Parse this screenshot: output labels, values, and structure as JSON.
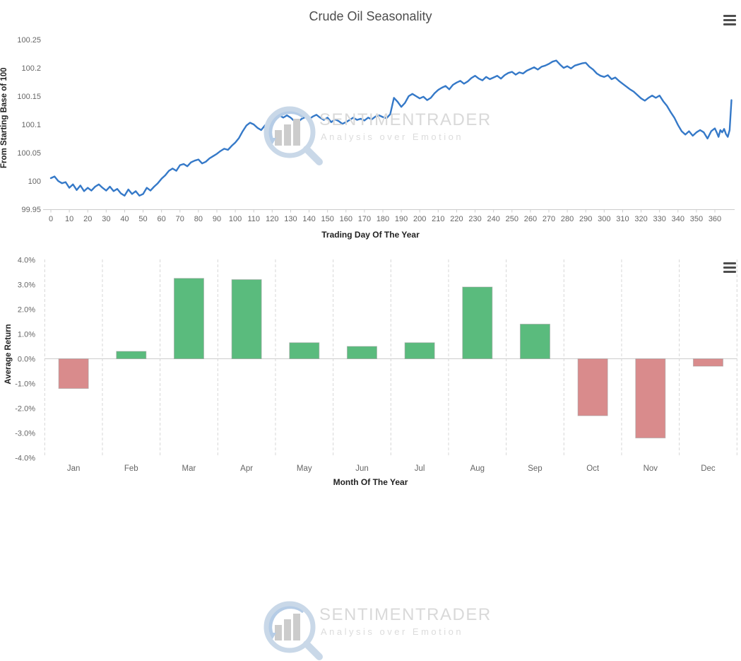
{
  "header": {
    "title": "Crude Oil Seasonality"
  },
  "watermark": {
    "title": "SENTIMENTRADER",
    "subtitle": "Analysis over Emotion"
  },
  "icons": {
    "menu": "hamburger-menu-icon"
  },
  "colors": {
    "line": "#3579c8",
    "positive_bar": "#5abb7d",
    "negative_bar": "#d98b8c",
    "bar_border": "#9e9e9e",
    "axis_line": "#cccccc",
    "grid_dash": "#d6d6d6",
    "tick_text": "#666666",
    "title_text": "#4d4d4d"
  },
  "chart_data": [
    {
      "type": "line",
      "title": "Crude Oil Seasonality",
      "xlabel": "Trading Day Of The Year",
      "ylabel": "From Starting Base of 100",
      "xlim": [
        0,
        370
      ],
      "ylim": [
        99.95,
        100.2625
      ],
      "grid": false,
      "legend": "none",
      "x_ticks": [
        0,
        10,
        20,
        30,
        40,
        50,
        60,
        70,
        80,
        90,
        100,
        110,
        120,
        130,
        140,
        150,
        160,
        170,
        180,
        190,
        200,
        210,
        220,
        230,
        240,
        250,
        260,
        270,
        280,
        290,
        300,
        310,
        320,
        330,
        340,
        350,
        360
      ],
      "y_ticks": [
        "99.95",
        "100",
        "100.05",
        "100.1",
        "100.15",
        "100.2",
        "100.25"
      ],
      "series": [
        {
          "name": "Crude Oil Seasonality",
          "color": "#3579c8",
          "points": [
            [
              0,
              100.005
            ],
            [
              2,
              100.008
            ],
            [
              4,
              100.0
            ],
            [
              6,
              99.996
            ],
            [
              8,
              99.998
            ],
            [
              10,
              99.988
            ],
            [
              12,
              99.994
            ],
            [
              14,
              99.984
            ],
            [
              16,
              99.992
            ],
            [
              18,
              99.982
            ],
            [
              20,
              99.988
            ],
            [
              22,
              99.983
            ],
            [
              24,
              99.99
            ],
            [
              26,
              99.994
            ],
            [
              28,
              99.988
            ],
            [
              30,
              99.983
            ],
            [
              32,
              99.99
            ],
            [
              34,
              99.982
            ],
            [
              36,
              99.986
            ],
            [
              38,
              99.978
            ],
            [
              40,
              99.974
            ],
            [
              42,
              99.985
            ],
            [
              44,
              99.977
            ],
            [
              46,
              99.982
            ],
            [
              48,
              99.974
            ],
            [
              50,
              99.977
            ],
            [
              52,
              99.988
            ],
            [
              54,
              99.983
            ],
            [
              56,
              99.99
            ],
            [
              58,
              99.996
            ],
            [
              60,
              100.004
            ],
            [
              62,
              100.01
            ],
            [
              64,
              100.018
            ],
            [
              66,
              100.022
            ],
            [
              68,
              100.018
            ],
            [
              70,
              100.028
            ],
            [
              72,
              100.03
            ],
            [
              74,
              100.026
            ],
            [
              76,
              100.033
            ],
            [
              78,
              100.036
            ],
            [
              80,
              100.038
            ],
            [
              82,
              100.031
            ],
            [
              84,
              100.034
            ],
            [
              86,
              100.04
            ],
            [
              88,
              100.044
            ],
            [
              90,
              100.048
            ],
            [
              92,
              100.053
            ],
            [
              94,
              100.057
            ],
            [
              96,
              100.055
            ],
            [
              98,
              100.062
            ],
            [
              100,
              100.068
            ],
            [
              102,
              100.076
            ],
            [
              104,
              100.088
            ],
            [
              106,
              100.098
            ],
            [
              108,
              100.103
            ],
            [
              110,
              100.1
            ],
            [
              112,
              100.094
            ],
            [
              114,
              100.09
            ],
            [
              116,
              100.098
            ],
            [
              118,
              100.103
            ],
            [
              120,
              100.106
            ],
            [
              122,
              100.11
            ],
            [
              124,
              100.116
            ],
            [
              126,
              100.112
            ],
            [
              128,
              100.116
            ],
            [
              130,
              100.112
            ],
            [
              132,
              100.106
            ],
            [
              134,
              100.104
            ],
            [
              136,
              100.11
            ],
            [
              138,
              100.113
            ],
            [
              140,
              100.109
            ],
            [
              142,
              100.114
            ],
            [
              144,
              100.117
            ],
            [
              146,
              100.112
            ],
            [
              148,
              100.108
            ],
            [
              150,
              100.112
            ],
            [
              152,
              100.104
            ],
            [
              154,
              100.109
            ],
            [
              156,
              100.106
            ],
            [
              158,
              100.101
            ],
            [
              160,
              100.104
            ],
            [
              162,
              100.108
            ],
            [
              164,
              100.112
            ],
            [
              166,
              100.108
            ],
            [
              168,
              100.11
            ],
            [
              170,
              100.107
            ],
            [
              172,
              100.112
            ],
            [
              174,
              100.109
            ],
            [
              176,
              100.114
            ],
            [
              178,
              100.116
            ],
            [
              180,
              100.113
            ],
            [
              182,
              100.111
            ],
            [
              184,
              100.118
            ],
            [
              186,
              100.147
            ],
            [
              188,
              100.14
            ],
            [
              190,
              100.131
            ],
            [
              192,
              100.138
            ],
            [
              194,
              100.15
            ],
            [
              196,
              100.154
            ],
            [
              198,
              100.15
            ],
            [
              200,
              100.146
            ],
            [
              202,
              100.149
            ],
            [
              204,
              100.143
            ],
            [
              206,
              100.147
            ],
            [
              208,
              100.155
            ],
            [
              210,
              100.161
            ],
            [
              212,
              100.165
            ],
            [
              214,
              100.168
            ],
            [
              216,
              100.162
            ],
            [
              218,
              100.17
            ],
            [
              220,
              100.174
            ],
            [
              222,
              100.177
            ],
            [
              224,
              100.172
            ],
            [
              226,
              100.176
            ],
            [
              228,
              100.182
            ],
            [
              230,
              100.186
            ],
            [
              232,
              100.181
            ],
            [
              234,
              100.178
            ],
            [
              236,
              100.184
            ],
            [
              238,
              100.18
            ],
            [
              240,
              100.183
            ],
            [
              242,
              100.186
            ],
            [
              244,
              100.181
            ],
            [
              246,
              100.187
            ],
            [
              248,
              100.191
            ],
            [
              250,
              100.193
            ],
            [
              252,
              100.188
            ],
            [
              254,
              100.192
            ],
            [
              256,
              100.19
            ],
            [
              258,
              100.195
            ],
            [
              260,
              100.198
            ],
            [
              262,
              100.201
            ],
            [
              264,
              100.197
            ],
            [
              266,
              100.202
            ],
            [
              268,
              100.204
            ],
            [
              270,
              100.207
            ],
            [
              272,
              100.211
            ],
            [
              274,
              100.213
            ],
            [
              276,
              100.206
            ],
            [
              278,
              100.2
            ],
            [
              280,
              100.203
            ],
            [
              282,
              100.199
            ],
            [
              284,
              100.204
            ],
            [
              286,
              100.206
            ],
            [
              288,
              100.208
            ],
            [
              290,
              100.209
            ],
            [
              292,
              100.202
            ],
            [
              294,
              100.197
            ],
            [
              296,
              100.19
            ],
            [
              298,
              100.186
            ],
            [
              300,
              100.184
            ],
            [
              302,
              100.187
            ],
            [
              304,
              100.18
            ],
            [
              306,
              100.183
            ],
            [
              308,
              100.177
            ],
            [
              310,
              100.172
            ],
            [
              312,
              100.167
            ],
            [
              314,
              100.162
            ],
            [
              316,
              100.158
            ],
            [
              318,
              100.152
            ],
            [
              320,
              100.146
            ],
            [
              322,
              100.142
            ],
            [
              324,
              100.147
            ],
            [
              326,
              100.151
            ],
            [
              328,
              100.147
            ],
            [
              330,
              100.151
            ],
            [
              332,
              100.141
            ],
            [
              334,
              100.133
            ],
            [
              336,
              100.122
            ],
            [
              338,
              100.112
            ],
            [
              340,
              100.099
            ],
            [
              342,
              100.088
            ],
            [
              344,
              100.082
            ],
            [
              346,
              100.088
            ],
            [
              348,
              100.08
            ],
            [
              350,
              100.086
            ],
            [
              352,
              100.09
            ],
            [
              354,
              100.086
            ],
            [
              356,
              100.075
            ],
            [
              358,
              100.088
            ],
            [
              360,
              100.093
            ],
            [
              361,
              100.086
            ],
            [
              362,
              100.078
            ],
            [
              363,
              100.09
            ],
            [
              364,
              100.086
            ],
            [
              365,
              100.092
            ],
            [
              366,
              100.083
            ],
            [
              367,
              100.078
            ],
            [
              368,
              100.09
            ],
            [
              369,
              100.143
            ]
          ]
        }
      ]
    },
    {
      "type": "bar",
      "xlabel": "Month Of The Year",
      "ylabel": "Average Return",
      "categories": [
        "Jan",
        "Feb",
        "Mar",
        "Apr",
        "May",
        "Jun",
        "Jul",
        "Aug",
        "Sep",
        "Oct",
        "Nov",
        "Dec"
      ],
      "values": [
        -1.2,
        0.3,
        3.25,
        3.2,
        0.65,
        0.5,
        0.65,
        2.9,
        1.4,
        -2.3,
        -3.2,
        -0.3
      ],
      "ylim": [
        -4,
        4
      ],
      "y_ticks": [
        "4.0%",
        "3.0%",
        "2.0%",
        "1.0%",
        "0.0%",
        "-1.0%",
        "-2.0%",
        "-3.0%",
        "-4.0%"
      ],
      "grid": "vertical-dashed",
      "legend": "none",
      "positive_color": "#5abb7d",
      "negative_color": "#d98b8c"
    }
  ]
}
